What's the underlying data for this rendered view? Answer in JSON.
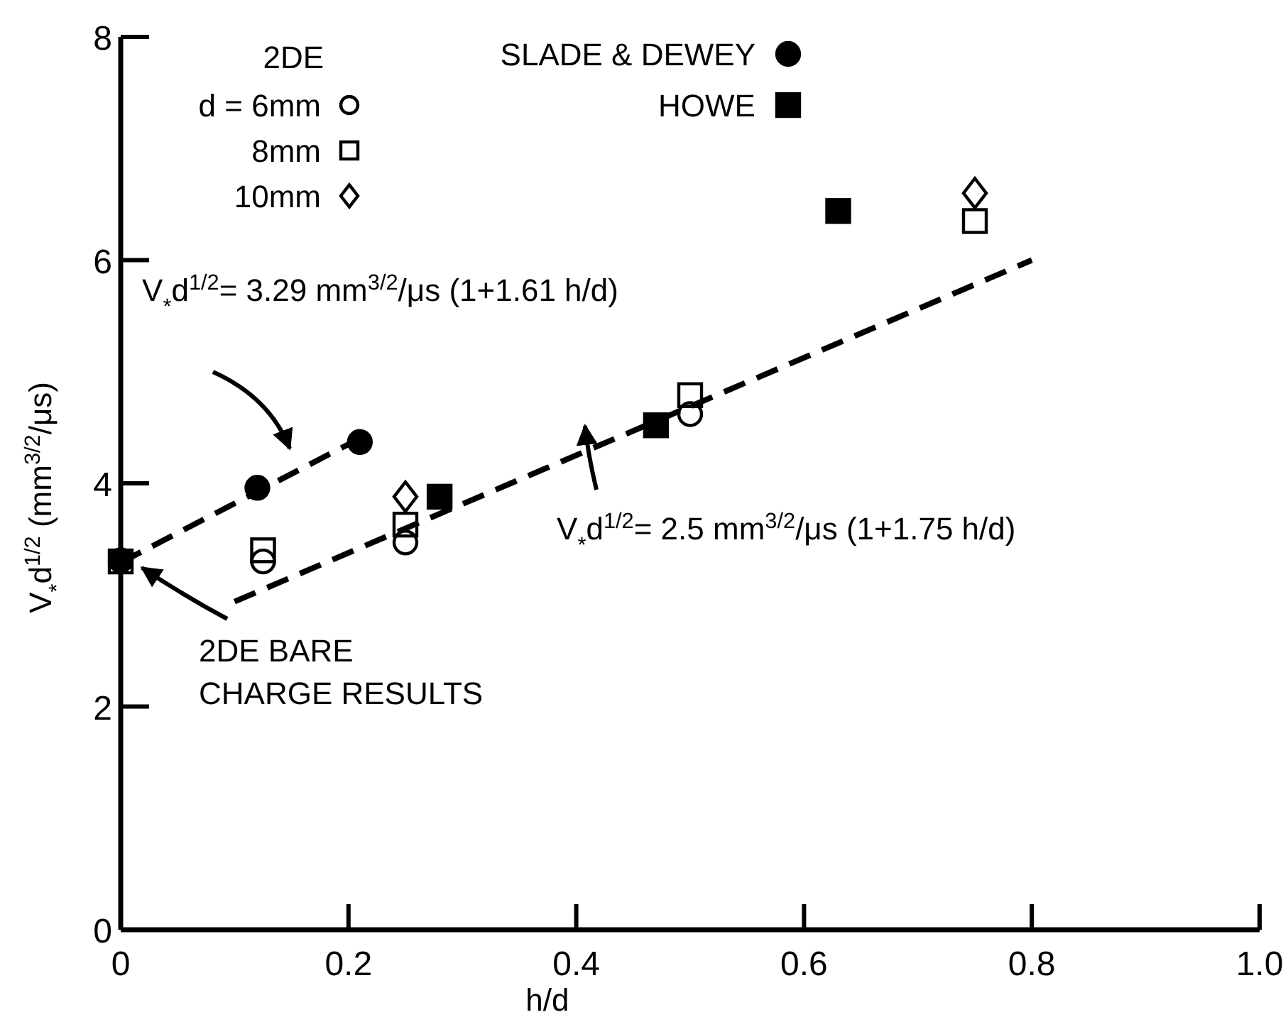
{
  "chart_data": {
    "type": "scatter",
    "xlabel": "h/d",
    "ylabel": "V$_{*}$d$^{1/2}$ (mm$^{3/2}$/μs)",
    "legend_title": "2DE",
    "legend": "top left",
    "xlim": [
      0,
      1.0
    ],
    "xticks": [
      0,
      0.2,
      {
        "value": 0.4,
        "label": "0.4"
      },
      0.6,
      0.8,
      {
        "value": 1.0,
        "label": "1.0"
      }
    ],
    "ylim": [
      0,
      8
    ],
    "yticks": [
      0,
      2,
      4,
      6,
      8
    ],
    "grid": false,
    "series": [
      {
        "name": "d = 6mm",
        "color": "#000000",
        "marker": "circle",
        "x": [
          0.125,
          0.25,
          0.5
        ],
        "values": [
          3.3,
          3.47,
          4.62
        ]
      },
      {
        "name": "8mm",
        "color": "#000000",
        "marker": "square",
        "x": [
          0,
          0.125,
          0.25,
          0.5,
          0.75
        ],
        "values": [
          3.3,
          3.4,
          3.63,
          4.79,
          6.35
        ]
      },
      {
        "name": "10mm",
        "color": "#000000",
        "marker": "diamond",
        "x": [
          0.25,
          0.75
        ],
        "values": [
          3.88,
          6.6
        ]
      },
      {
        "name": "SLADE & DEWEY",
        "color": "#000000",
        "marker": "circle",
        "x": [
          0,
          0.12,
          0.21
        ],
        "values": [
          3.31,
          3.96,
          4.37
        ]
      },
      {
        "name": "HOWE",
        "color": "#000000",
        "marker": "square",
        "x": [
          0.28,
          0.47,
          0.63
        ],
        "values": [
          3.88,
          4.52,
          6.44
        ]
      },
      {
        "type": "line",
        "color": "#000000",
        "marker": "none",
        "line_style": "dashed",
        "x": [
          0,
          0.2
        ],
        "values": [
          3.29,
          4.35
        ]
      },
      {
        "type": "line",
        "color": "#000000",
        "marker": "none",
        "line_style": "dashed",
        "x": [
          0.1,
          0.8
        ],
        "values": [
          2.94,
          6.0
        ]
      }
    ],
    "annotations": [
      "V$_{*}$d$^{1/2}$= 3.29 mm$^{3/2}$/μs (1+1.61 h/d)",
      "V$_{*}$d$^{1/2}$= 2.5 mm$^{3/2}$/μs (1+1.75 h/d)",
      "2DE BARE CHARGE RESULTS"
    ]
  }
}
